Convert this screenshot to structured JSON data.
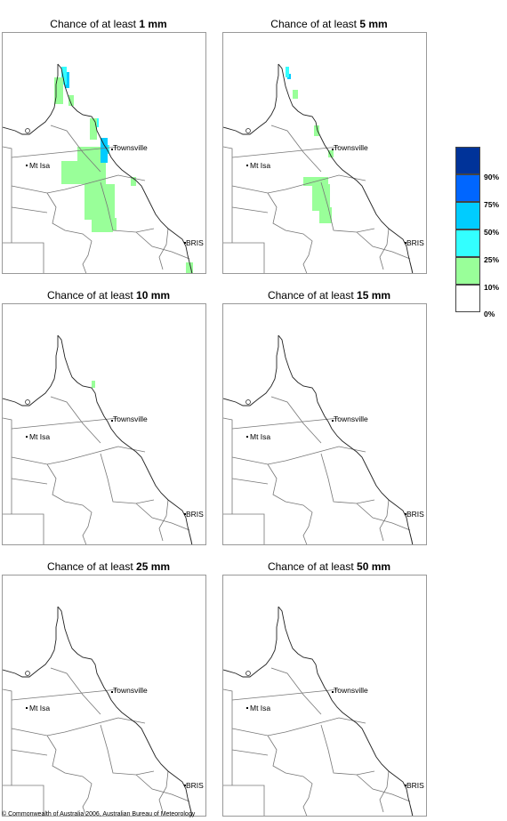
{
  "panels": [
    {
      "title_prefix": "Chance of at least ",
      "amount": "1 mm"
    },
    {
      "title_prefix": "Chance of at least ",
      "amount": "5 mm"
    },
    {
      "title_prefix": "Chance of at least ",
      "amount": "10 mm"
    },
    {
      "title_prefix": "Chance of at least ",
      "amount": "15 mm"
    },
    {
      "title_prefix": "Chance of at least ",
      "amount": "25 mm"
    },
    {
      "title_prefix": "Chance of at least ",
      "amount": "50 mm"
    }
  ],
  "places": {
    "mt_isa": "Mt Isa",
    "townsville": "Townsville",
    "bris": "BRIS"
  },
  "legend": {
    "labels": [
      "90%",
      "75%",
      "50%",
      "25%",
      "10%",
      "0%"
    ],
    "colors": [
      "#003399",
      "#0066ff",
      "#00ccff",
      "#33ffff",
      "#99ff99",
      "#ffffff"
    ]
  },
  "footer": "© Commonwealth of Australia 2006, Australian Bureau of Meteorology"
}
